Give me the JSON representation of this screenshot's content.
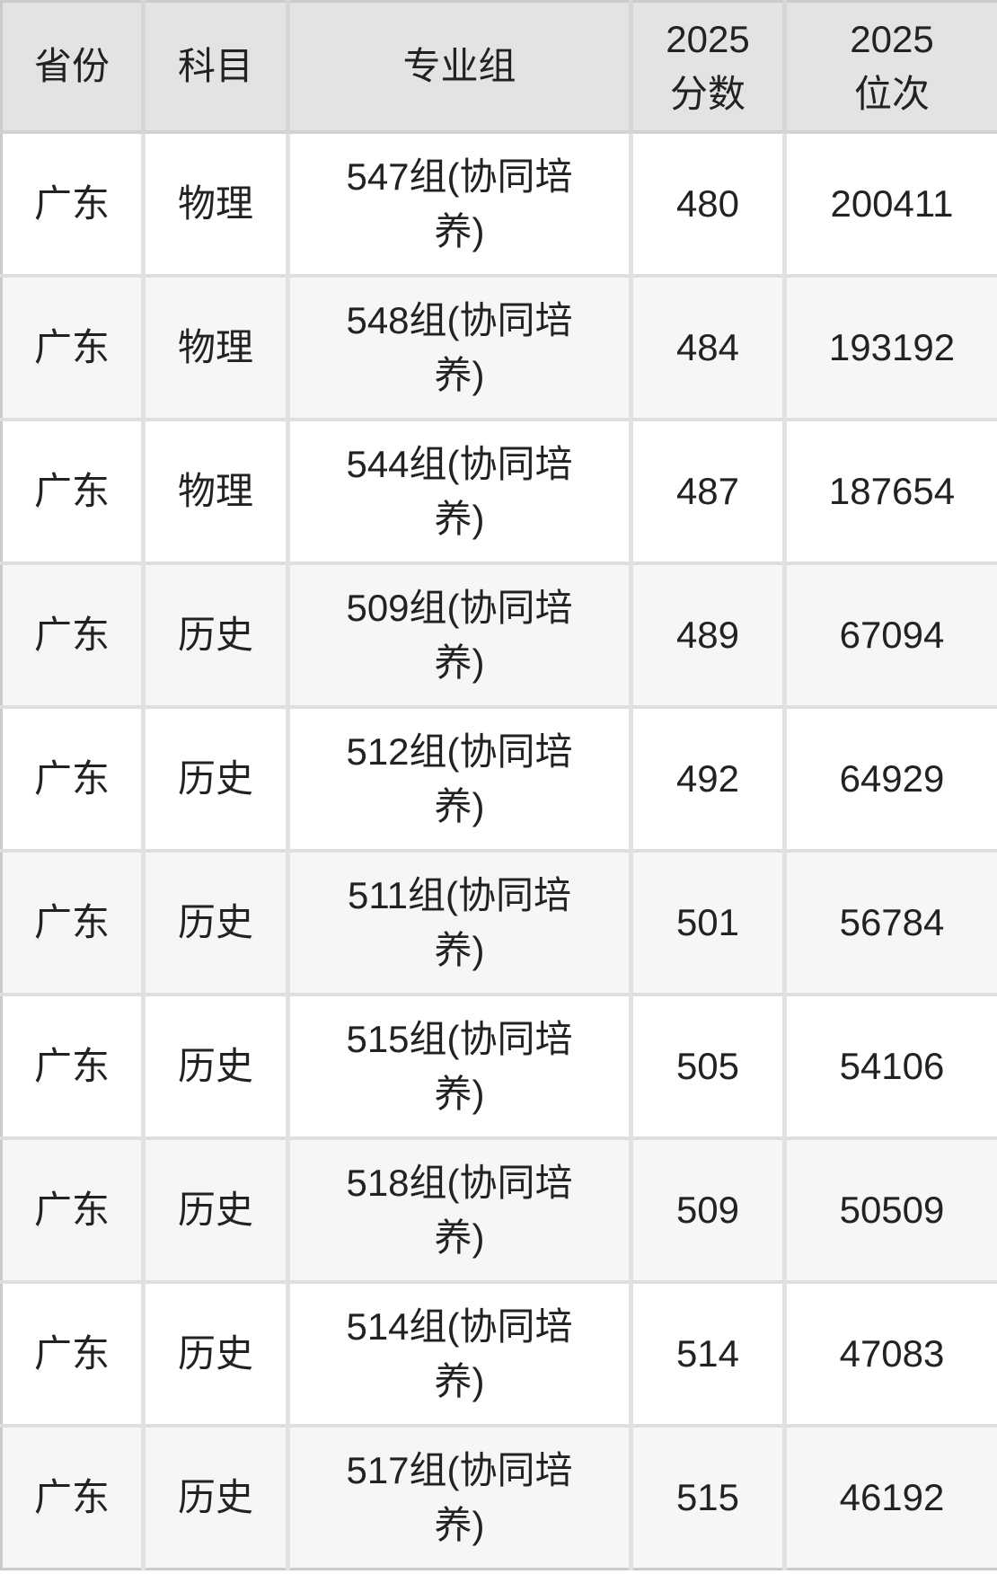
{
  "colors": {
    "header_bg": "#e3e3e3",
    "row_bg": "#ffffff",
    "row_alt_bg": "#f6f6f6",
    "row_border": "#dedede",
    "column_divider": "#e1e1e1",
    "outer_border": "#cbcbcb",
    "text": "#222222"
  },
  "table": {
    "columns": [
      {
        "key": "province",
        "label": "省份"
      },
      {
        "key": "subject",
        "label": "科目"
      },
      {
        "key": "group",
        "label": "专业组"
      },
      {
        "key": "score",
        "label": "2025\n分数"
      },
      {
        "key": "rank",
        "label": "2025\n位次"
      }
    ],
    "rows": [
      {
        "province": "广东",
        "subject": "物理",
        "group": "547组(协同培\n养)",
        "score": "480",
        "rank": "200411"
      },
      {
        "province": "广东",
        "subject": "物理",
        "group": "548组(协同培\n养)",
        "score": "484",
        "rank": "193192"
      },
      {
        "province": "广东",
        "subject": "物理",
        "group": "544组(协同培\n养)",
        "score": "487",
        "rank": "187654"
      },
      {
        "province": "广东",
        "subject": "历史",
        "group": "509组(协同培\n养)",
        "score": "489",
        "rank": "67094"
      },
      {
        "province": "广东",
        "subject": "历史",
        "group": "512组(协同培\n养)",
        "score": "492",
        "rank": "64929"
      },
      {
        "province": "广东",
        "subject": "历史",
        "group": "511组(协同培\n养)",
        "score": "501",
        "rank": "56784"
      },
      {
        "province": "广东",
        "subject": "历史",
        "group": "515组(协同培\n养)",
        "score": "505",
        "rank": "54106"
      },
      {
        "province": "广东",
        "subject": "历史",
        "group": "518组(协同培\n养)",
        "score": "509",
        "rank": "50509"
      },
      {
        "province": "广东",
        "subject": "历史",
        "group": "514组(协同培\n养)",
        "score": "514",
        "rank": "47083"
      },
      {
        "province": "广东",
        "subject": "历史",
        "group": "517组(协同培\n养)",
        "score": "515",
        "rank": "46192"
      }
    ]
  }
}
